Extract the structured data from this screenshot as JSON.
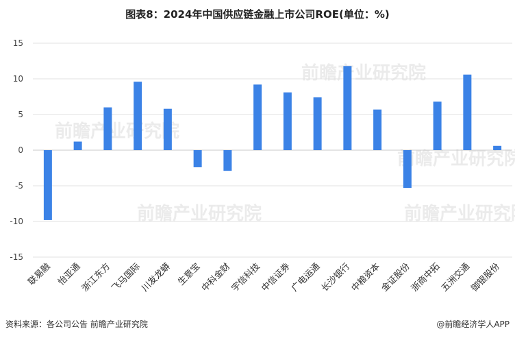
{
  "title": "图表8：2024年中国供应链金融上市公司ROE(单位：%)",
  "source": "资料来源：各公司公告 前瞻产业研究院",
  "brand": "@前瞻经济学人APP",
  "watermark": "前瞻产业研究院",
  "bar_color": "#3b82e6",
  "chart_data": {
    "type": "bar",
    "title": "图表8：2024年中国供应链金融上市公司ROE(单位：%)",
    "xlabel": "",
    "ylabel": "",
    "ylim": [
      -15,
      15
    ],
    "yticks": [
      15,
      10,
      5,
      0,
      -5,
      -10,
      -15
    ],
    "grid": true,
    "categories": [
      "联易融",
      "怡亚通",
      "浙江东方",
      "飞马国际",
      "川发龙蟒",
      "生意宝",
      "中科金财",
      "宇信科技",
      "中信证券",
      "广电运通",
      "长沙银行",
      "中粮资本",
      "金证股份",
      "浙商中拓",
      "五洲交通",
      "御银股份"
    ],
    "values": [
      -9.8,
      1.2,
      6.0,
      9.6,
      5.8,
      -2.4,
      -2.9,
      9.2,
      8.1,
      7.4,
      11.8,
      5.7,
      -5.3,
      6.8,
      10.6,
      0.6
    ]
  }
}
